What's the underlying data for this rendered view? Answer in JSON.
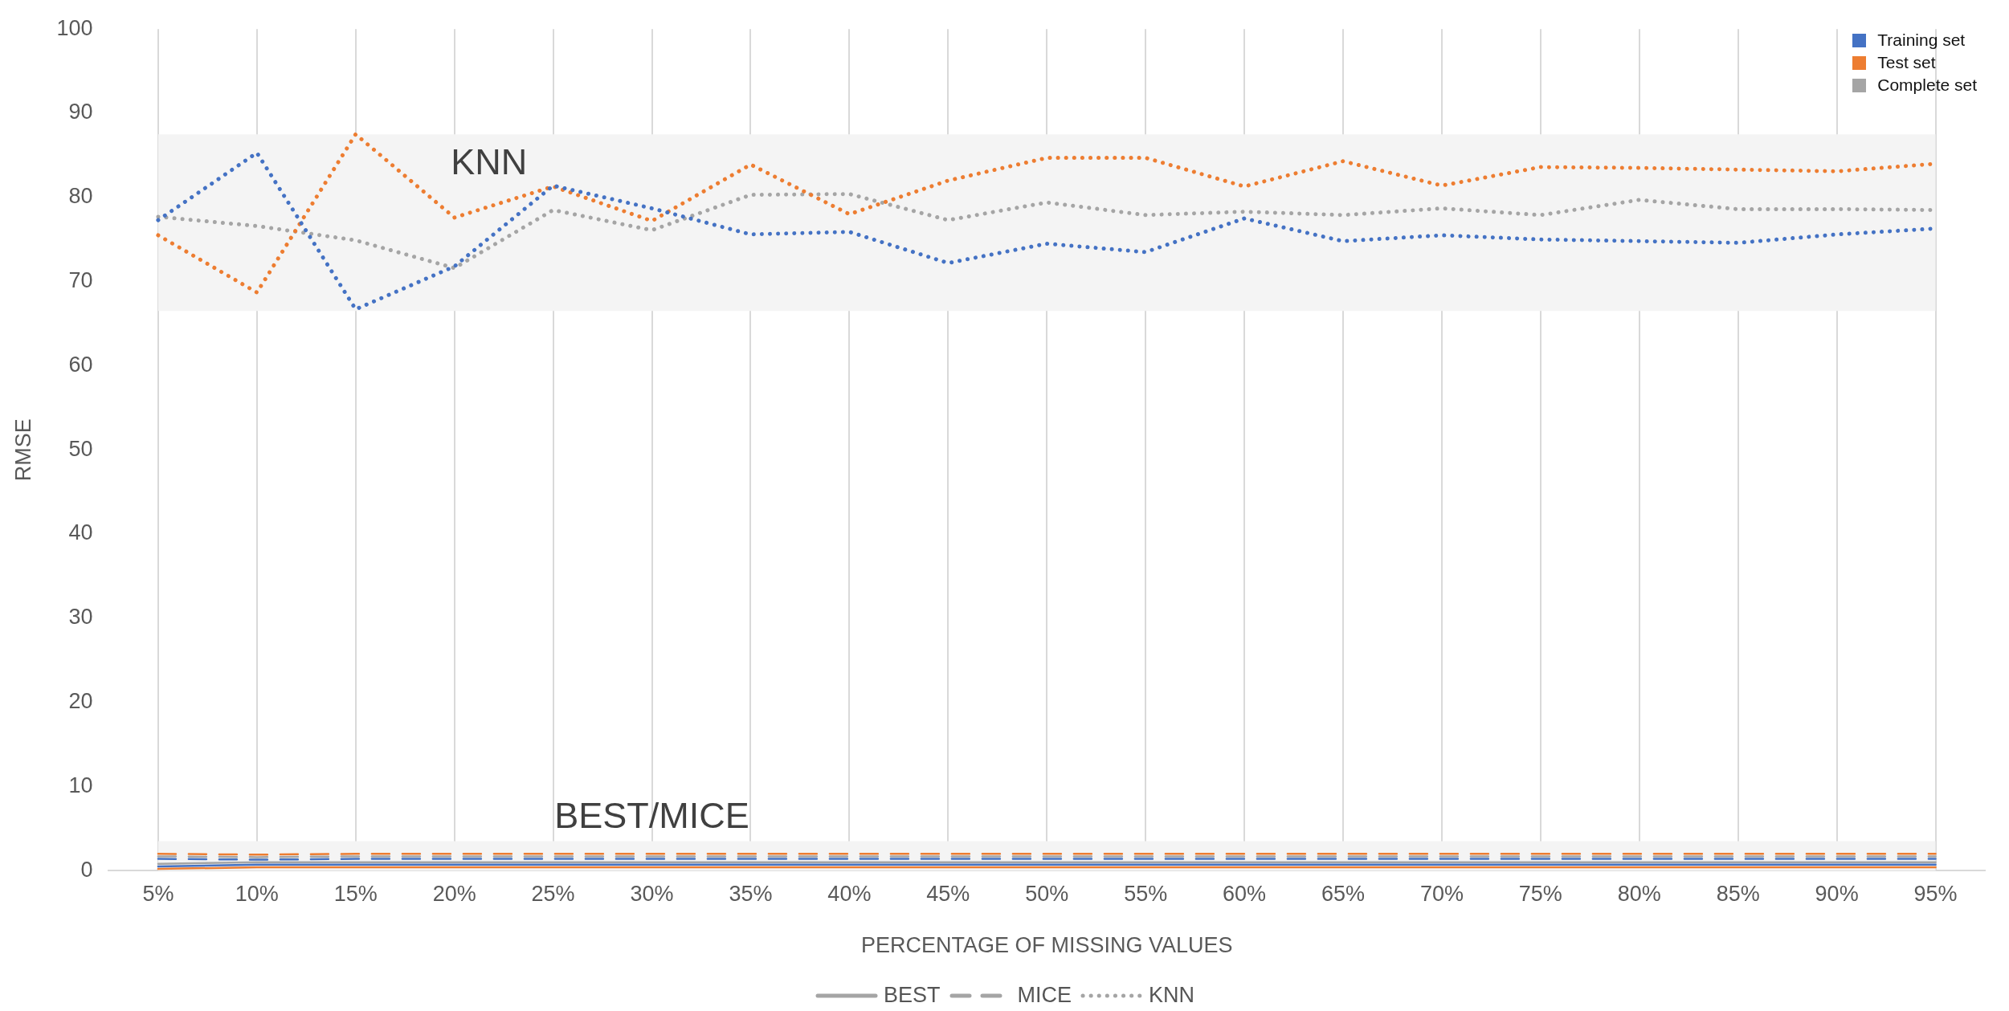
{
  "chart_data": {
    "type": "line",
    "xlabel": "PERCENTAGE OF MISSING VALUES",
    "ylabel": "RMSE",
    "categories": [
      "5%",
      "10%",
      "15%",
      "20%",
      "25%",
      "30%",
      "35%",
      "40%",
      "45%",
      "50%",
      "55%",
      "60%",
      "65%",
      "70%",
      "75%",
      "80%",
      "85%",
      "90%",
      "95%"
    ],
    "series": [
      {
        "name": "Training set",
        "color": "#4472c4",
        "line_style": "solid",
        "values": [
          0.5,
          0.7,
          0.7,
          0.7,
          0.7,
          0.7,
          0.7,
          0.7,
          0.7,
          0.7,
          0.7,
          0.7,
          0.7,
          0.7,
          0.7,
          0.7,
          0.7,
          0.7,
          0.7
        ]
      },
      {
        "name": "Test set",
        "color": "#ed7d31",
        "line_style": "solid",
        "values": [
          0.2,
          0.4,
          0.4,
          0.4,
          0.4,
          0.4,
          0.4,
          0.4,
          0.4,
          0.4,
          0.4,
          0.4,
          0.4,
          0.4,
          0.4,
          0.4,
          0.4,
          0.4,
          0.4
        ]
      },
      {
        "name": "Complete set",
        "color": "#a5a5a5",
        "line_style": "solid",
        "values": [
          0.8,
          1.0,
          1.0,
          1.0,
          1.0,
          1.0,
          1.0,
          1.0,
          1.0,
          1.0,
          1.0,
          1.0,
          1.0,
          1.0,
          1.0,
          1.0,
          1.0,
          1.0,
          1.0
        ]
      },
      {
        "color": "#4472c4",
        "line_style": "dashed",
        "values": [
          1.4,
          1.3,
          1.4,
          1.4,
          1.4,
          1.4,
          1.4,
          1.4,
          1.4,
          1.4,
          1.4,
          1.4,
          1.4,
          1.4,
          1.4,
          1.4,
          1.4,
          1.4,
          1.4
        ]
      },
      {
        "color": "#ed7d31",
        "line_style": "dashed",
        "values": [
          2.0,
          1.9,
          2.0,
          2.0,
          2.0,
          2.0,
          2.0,
          2.0,
          2.0,
          2.0,
          2.0,
          2.0,
          2.0,
          2.0,
          2.0,
          2.0,
          2.0,
          2.0,
          2.0
        ]
      },
      {
        "color": "#a5a5a5",
        "line_style": "dashed",
        "values": [
          1.7,
          1.6,
          1.7,
          1.7,
          1.7,
          1.7,
          1.7,
          1.7,
          1.7,
          1.7,
          1.7,
          1.7,
          1.7,
          1.7,
          1.7,
          1.7,
          1.7,
          1.7,
          1.7
        ]
      },
      {
        "color": "#4472c4",
        "line_style": "dotted",
        "values": [
          77.3,
          85.3,
          66.7,
          71.8,
          81.4,
          78.7,
          75.6,
          75.9,
          72.2,
          74.5,
          73.5,
          77.5,
          74.8,
          75.5,
          75.0,
          74.8,
          74.6,
          75.6,
          76.3
        ]
      },
      {
        "color": "#ed7d31",
        "line_style": "dotted",
        "values": [
          75.5,
          68.7,
          87.5,
          77.6,
          81.3,
          77.2,
          83.9,
          78.0,
          82.0,
          84.7,
          84.7,
          81.3,
          84.3,
          81.4,
          83.6,
          83.5,
          83.3,
          83.1,
          84.0
        ]
      },
      {
        "color": "#a5a5a5",
        "line_style": "dotted",
        "values": [
          77.7,
          76.6,
          74.9,
          71.6,
          78.5,
          76.1,
          80.3,
          80.4,
          77.3,
          79.4,
          77.9,
          78.3,
          77.9,
          78.7,
          77.9,
          79.7,
          78.6,
          78.6,
          78.5
        ]
      }
    ],
    "ylim": [
      0,
      100
    ],
    "yticks": [
      0,
      10,
      20,
      30,
      40,
      50,
      60,
      70,
      80,
      90,
      100
    ],
    "bands": [
      {
        "axis": "y",
        "from": 66.5,
        "to": 87.5,
        "label": "KNN",
        "color": "#f4f4f4"
      },
      {
        "axis": "y",
        "from": 0,
        "to": 3.5,
        "label": "BEST/MICE",
        "color": "#f4f4f4"
      }
    ],
    "annotations": [
      "BEST",
      "MICE",
      "KNN"
    ],
    "grid": "x",
    "legend": "top right",
    "marker": "none"
  }
}
